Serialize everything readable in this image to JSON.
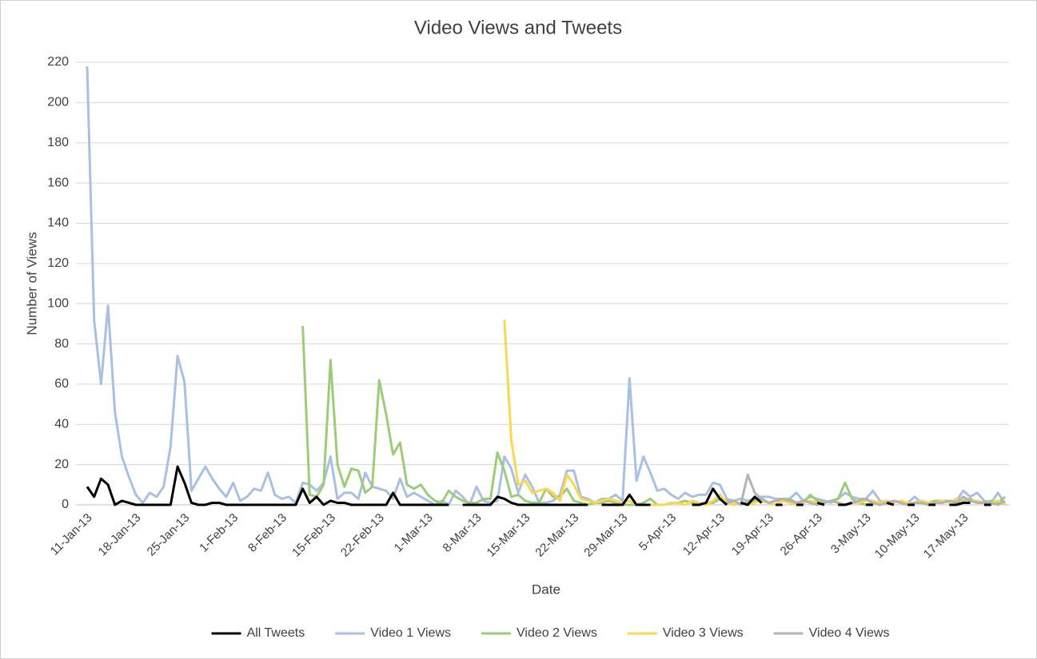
{
  "chart_data": {
    "type": "line",
    "title": "Video Views and Tweets",
    "x_label": "Date",
    "y_label": "Number of Views",
    "categories": [
      "11-Jan-13",
      null,
      null,
      null,
      null,
      null,
      null,
      "18-Jan-13",
      null,
      null,
      null,
      null,
      null,
      null,
      "25-Jan-13",
      null,
      null,
      null,
      null,
      null,
      null,
      "1-Feb-13",
      null,
      null,
      null,
      null,
      null,
      null,
      "8-Feb-13",
      null,
      null,
      null,
      null,
      null,
      null,
      "15-Feb-13",
      null,
      null,
      null,
      null,
      null,
      null,
      "22-Feb-13",
      null,
      null,
      null,
      null,
      null,
      null,
      "1-Mar-13",
      null,
      null,
      null,
      null,
      null,
      null,
      "8-Mar-13",
      null,
      null,
      null,
      null,
      null,
      null,
      "15-Mar-13",
      null,
      null,
      null,
      null,
      null,
      null,
      "22-Mar-13",
      null,
      null,
      null,
      null,
      null,
      null,
      "29-Mar-13",
      null,
      null,
      null,
      null,
      null,
      null,
      "5-Apr-13",
      null,
      null,
      null,
      null,
      null,
      null,
      "12-Apr-13",
      null,
      null,
      null,
      null,
      null,
      null,
      "19-Apr-13",
      null,
      null,
      null,
      null,
      null,
      null,
      "26-Apr-13",
      null,
      null,
      null,
      null,
      null,
      null,
      "3-May-13",
      null,
      null,
      null,
      null,
      null,
      null,
      "10-May-13",
      null,
      null,
      null,
      null,
      null,
      null,
      "17-May-13",
      null,
      null,
      null,
      null,
      null,
      null
    ],
    "series": [
      {
        "name": "All Tweets",
        "color": "#000000",
        "values": [
          9,
          4,
          13,
          10,
          0,
          2,
          1,
          0,
          0,
          0,
          0,
          0,
          0,
          19,
          11,
          1,
          0,
          0,
          1,
          1,
          0,
          0,
          0,
          0,
          0,
          0,
          0,
          0,
          0,
          0,
          0,
          8,
          1,
          4,
          0,
          2,
          1,
          1,
          0,
          0,
          0,
          0,
          0,
          0,
          6,
          0,
          0,
          0,
          0,
          0,
          0,
          0,
          0,
          null,
          0,
          0,
          0,
          0,
          0,
          4,
          3,
          1,
          0,
          0,
          0,
          0,
          0,
          0,
          0,
          0,
          0,
          0,
          0,
          null,
          0,
          0,
          0,
          0,
          5,
          0,
          0,
          0,
          null,
          0,
          null,
          0,
          null,
          0,
          0,
          1,
          8,
          3,
          0,
          null,
          1,
          0,
          4,
          1,
          null,
          0,
          0,
          null,
          0,
          0,
          null,
          1,
          0,
          null,
          0,
          0,
          1,
          null,
          0,
          0,
          null,
          1,
          0,
          null,
          0,
          0,
          null,
          0,
          0,
          null,
          0,
          0,
          1,
          1,
          null,
          0,
          0,
          null,
          0
        ]
      },
      {
        "name": "Video 1 Views",
        "color": "#a9bfe3",
        "values": [
          218,
          92,
          60,
          99,
          46,
          24,
          14,
          5,
          1,
          6,
          4,
          9,
          29,
          74,
          61,
          7,
          13,
          19,
          13,
          8,
          4,
          11,
          2,
          4,
          8,
          7,
          16,
          5,
          3,
          4,
          1,
          11,
          10,
          7,
          11,
          24,
          3,
          6,
          6,
          3,
          16,
          9,
          8,
          7,
          3,
          13,
          4,
          6,
          4,
          2,
          0,
          2,
          0,
          7,
          4,
          0,
          9,
          2,
          1,
          2,
          24,
          18,
          6,
          15,
          9,
          1,
          1,
          2,
          5,
          17,
          17,
          4,
          3,
          1,
          3,
          3,
          5,
          2,
          63,
          12,
          24,
          16,
          7,
          8,
          5,
          3,
          6,
          4,
          5,
          5,
          11,
          10,
          3,
          2,
          3,
          2,
          3,
          4,
          4,
          3,
          3,
          3,
          6,
          2,
          4,
          3,
          2,
          1,
          3,
          6,
          4,
          3,
          3,
          7,
          2,
          1,
          2,
          1,
          1,
          4,
          1,
          1,
          2,
          1,
          2,
          2,
          7,
          4,
          6,
          2,
          1,
          6,
          0
        ]
      },
      {
        "name": "Video 2 Views",
        "color": "#9dcc79",
        "values": [
          null,
          null,
          null,
          null,
          null,
          null,
          null,
          null,
          null,
          null,
          null,
          null,
          null,
          null,
          null,
          null,
          null,
          null,
          null,
          null,
          null,
          null,
          null,
          null,
          null,
          null,
          null,
          null,
          null,
          null,
          null,
          89,
          5,
          4,
          10,
          72,
          20,
          9,
          18,
          17,
          6,
          9,
          62,
          45,
          25,
          31,
          10,
          8,
          10,
          5,
          2,
          1,
          7,
          4,
          2,
          1,
          1,
          3,
          3,
          26,
          17,
          4,
          5,
          2,
          1,
          1,
          8,
          4,
          4,
          8,
          2,
          1,
          0,
          1,
          1,
          2,
          1,
          0,
          0,
          0,
          1,
          3,
          0,
          0,
          1,
          1,
          2,
          1,
          0,
          1,
          1,
          3,
          2,
          0,
          1,
          1,
          2,
          3,
          1,
          2,
          2,
          3,
          1,
          1,
          5,
          2,
          1,
          2,
          3,
          11,
          3,
          1,
          0,
          1,
          1,
          2,
          1,
          2,
          1,
          1,
          2,
          1,
          2,
          2,
          2,
          1,
          2,
          3,
          1,
          1,
          2,
          1,
          4
        ]
      },
      {
        "name": "Video 3 Views",
        "color": "#fcd74e",
        "values": [
          null,
          null,
          null,
          null,
          null,
          null,
          null,
          null,
          null,
          null,
          null,
          null,
          null,
          null,
          null,
          null,
          null,
          null,
          null,
          null,
          null,
          null,
          null,
          null,
          null,
          null,
          null,
          null,
          null,
          null,
          null,
          null,
          null,
          null,
          null,
          null,
          null,
          null,
          null,
          null,
          null,
          null,
          null,
          null,
          null,
          null,
          null,
          null,
          null,
          null,
          null,
          null,
          null,
          null,
          null,
          null,
          null,
          null,
          null,
          null,
          92,
          32,
          10,
          12,
          6,
          7,
          8,
          6,
          2,
          15,
          10,
          3,
          2,
          1,
          2,
          3,
          2,
          1,
          2,
          0,
          0,
          0,
          0,
          0,
          1,
          1,
          0,
          2,
          1,
          0,
          2,
          5,
          1,
          0,
          1,
          0,
          1,
          2,
          1,
          0,
          2,
          1,
          0,
          1,
          2,
          1,
          1,
          2,
          1,
          0,
          1,
          1,
          2,
          2,
          1,
          2,
          1,
          2,
          1,
          1,
          2,
          1,
          1,
          2,
          1,
          3,
          1,
          2,
          2,
          1,
          1,
          2,
          0
        ]
      },
      {
        "name": "Video 4 Views",
        "color": "#b3b3b3",
        "values": [
          null,
          null,
          null,
          null,
          null,
          null,
          null,
          null,
          null,
          null,
          null,
          null,
          null,
          null,
          null,
          null,
          null,
          null,
          null,
          null,
          null,
          null,
          null,
          null,
          null,
          null,
          null,
          null,
          null,
          null,
          null,
          null,
          null,
          null,
          null,
          null,
          null,
          null,
          null,
          null,
          null,
          null,
          null,
          null,
          null,
          null,
          null,
          null,
          null,
          null,
          null,
          null,
          null,
          null,
          null,
          null,
          null,
          null,
          null,
          null,
          null,
          null,
          null,
          null,
          null,
          null,
          null,
          null,
          null,
          null,
          null,
          null,
          null,
          null,
          null,
          null,
          null,
          null,
          null,
          null,
          null,
          null,
          null,
          null,
          null,
          null,
          null,
          null,
          null,
          null,
          null,
          null,
          1,
          2,
          0,
          15,
          6,
          3,
          1,
          2,
          3,
          2,
          1,
          2,
          1,
          0,
          1,
          2,
          1,
          0,
          1,
          2,
          3,
          1,
          0,
          1,
          2,
          1,
          0,
          1,
          1,
          0,
          1,
          1,
          2,
          1,
          4,
          2,
          1,
          1,
          1,
          0,
          2
        ]
      }
    ],
    "ylim": [
      0,
      220
    ],
    "yticks": [
      0,
      20,
      40,
      60,
      80,
      100,
      120,
      140,
      160,
      180,
      200,
      220
    ],
    "grid": true,
    "legend": "bottom"
  }
}
